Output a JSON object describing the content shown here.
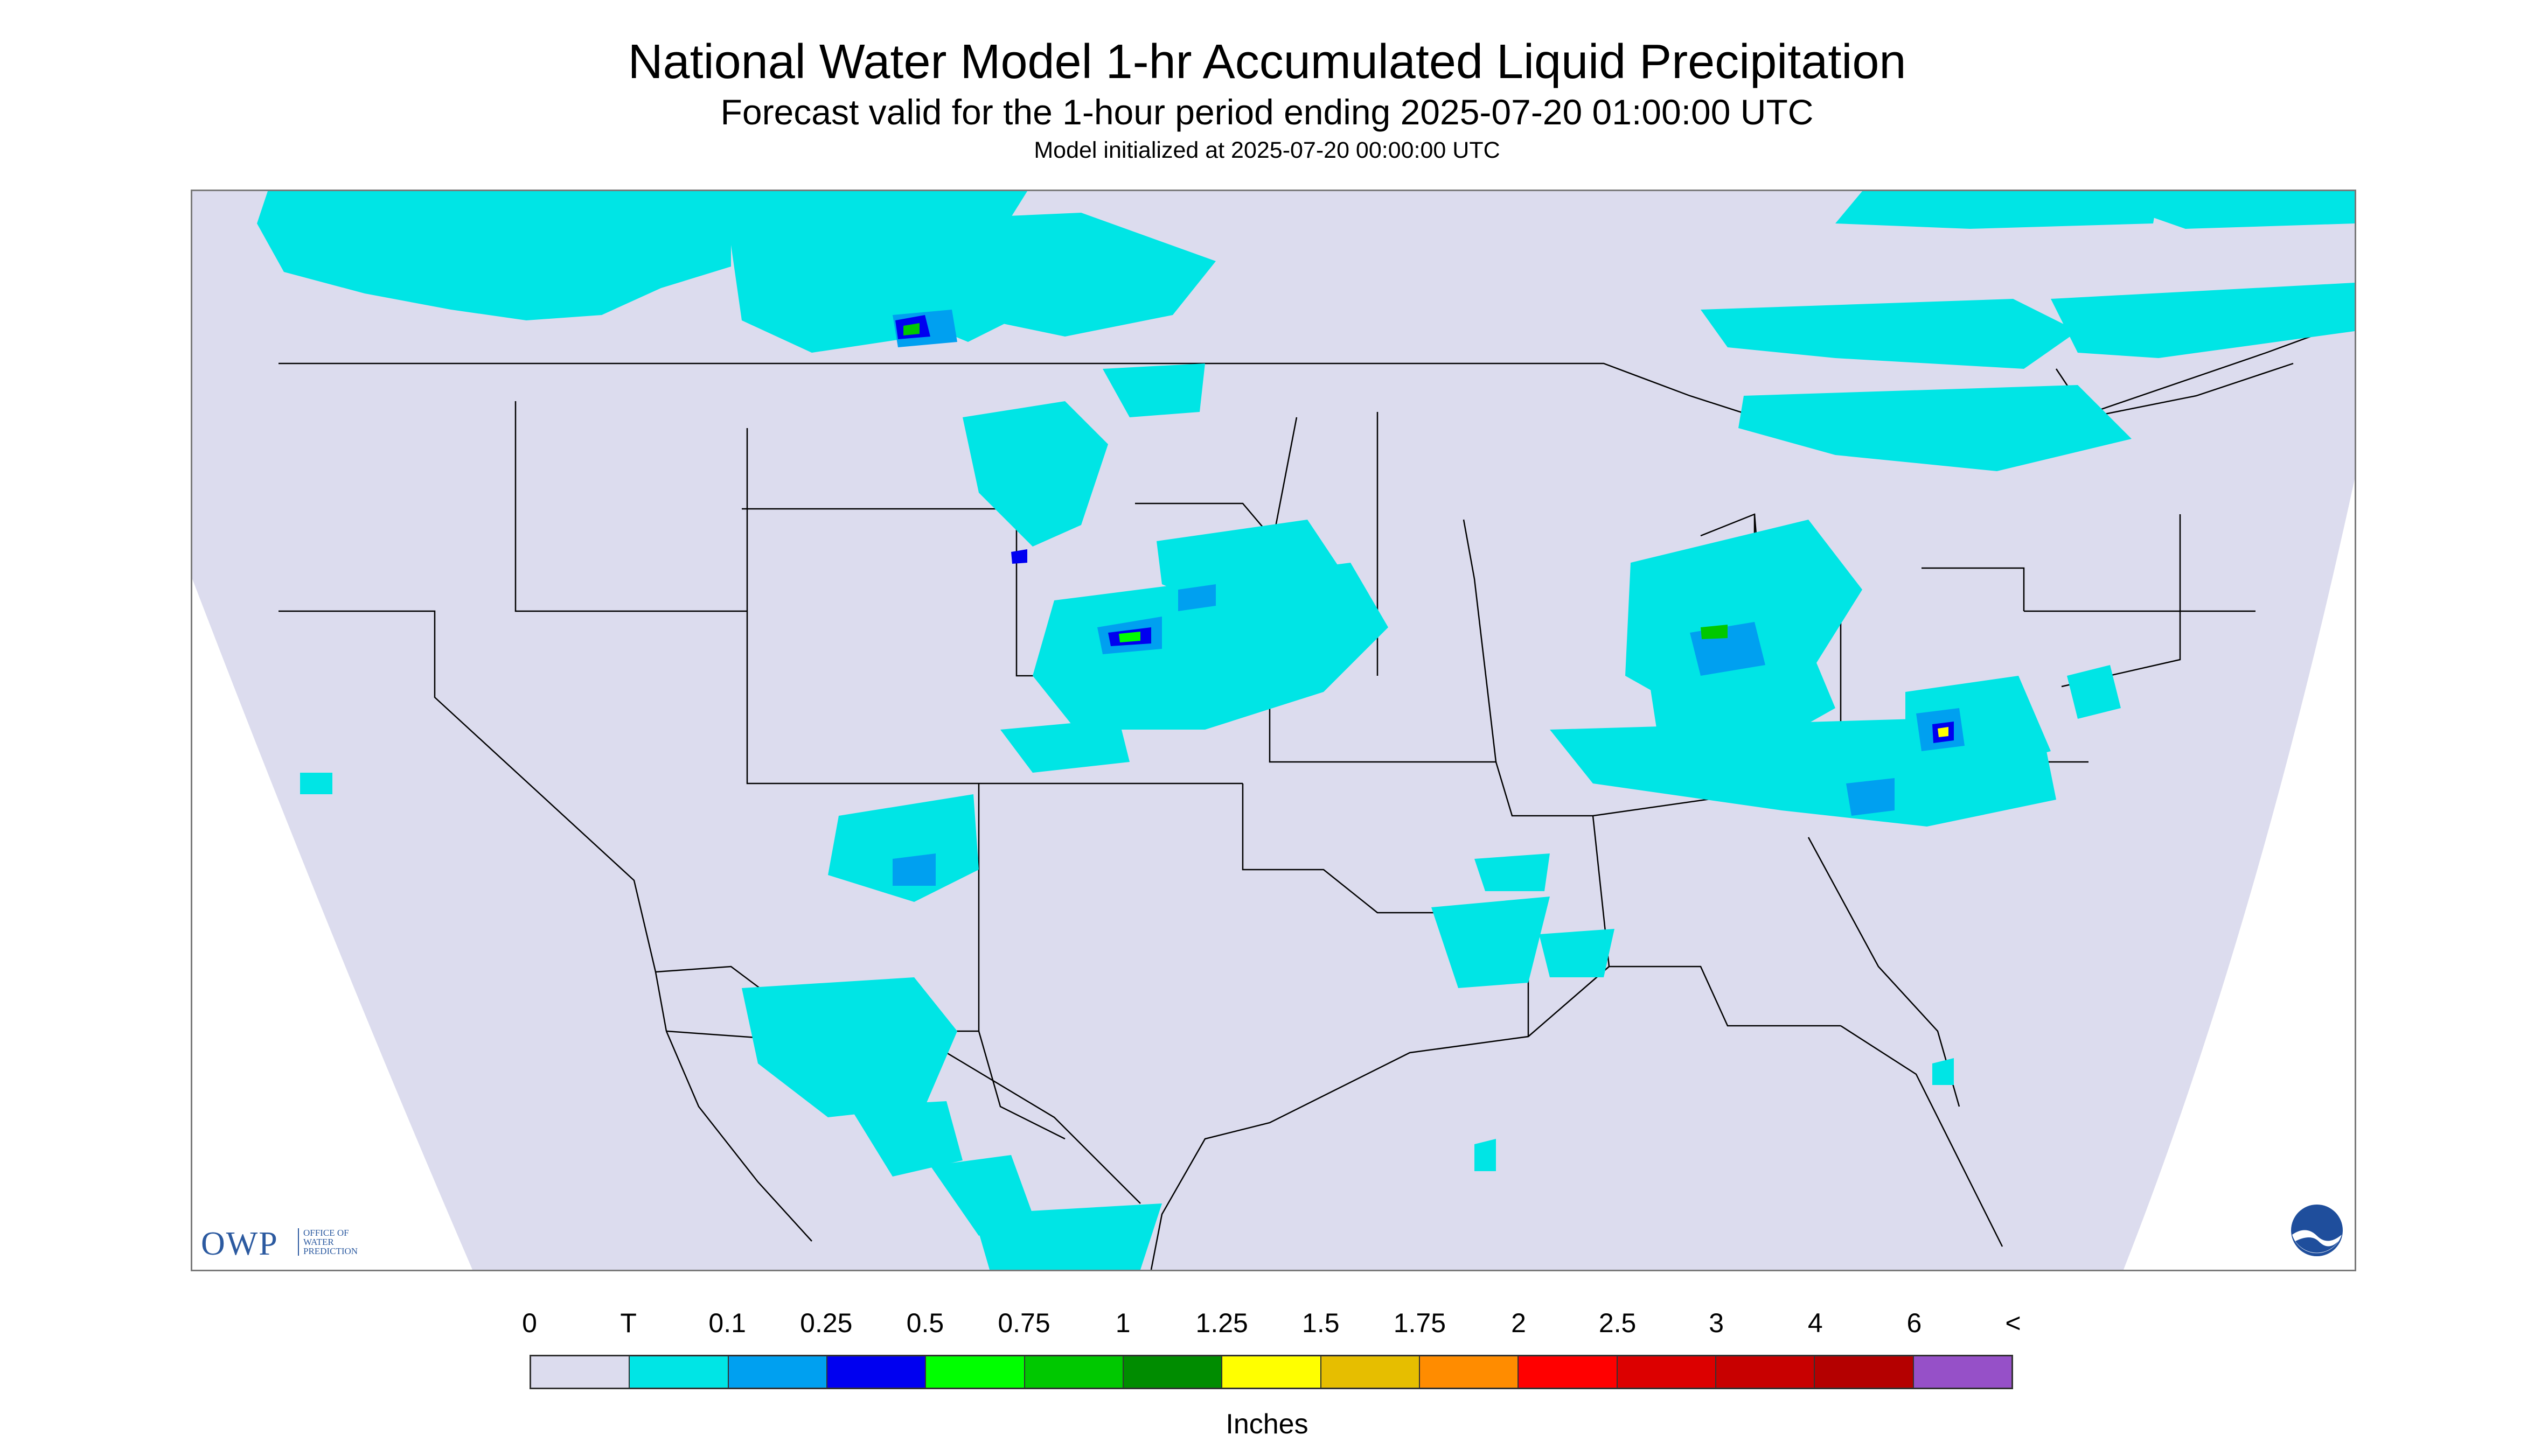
{
  "header": {
    "title": "National Water Model 1-hr Accumulated Liquid Precipitation",
    "subtitle": "Forecast valid for the 1-hour period ending 2025-07-20 01:00:00 UTC",
    "initialized": "Model initialized at 2025-07-20 00:00:00 UTC"
  },
  "map": {
    "background_color": "#dcdcee",
    "outside_color": "#ffffff",
    "border_color": "#000000"
  },
  "logos": {
    "owp_text": "OWP",
    "owp_sub": [
      "OFFICE OF",
      "WATER",
      "PREDICTION"
    ],
    "noaa_icon": "noaa-logo-icon"
  },
  "legend": {
    "units": "Inches",
    "labels": [
      "0",
      "T",
      "0.1",
      "0.25",
      "0.5",
      "0.75",
      "1",
      "1.25",
      "1.5",
      "1.75",
      "2",
      "2.5",
      "3",
      "4",
      "6",
      "<"
    ],
    "colors": [
      "#dcdcee",
      "#00e5e5",
      "#00a0f0",
      "#0000f0",
      "#00ff00",
      "#00c800",
      "#008c00",
      "#ffff00",
      "#e6be00",
      "#ff8c00",
      "#ff0000",
      "#dc0000",
      "#c80000",
      "#b40000",
      "#ff00ff",
      "#9650c8"
    ]
  }
}
